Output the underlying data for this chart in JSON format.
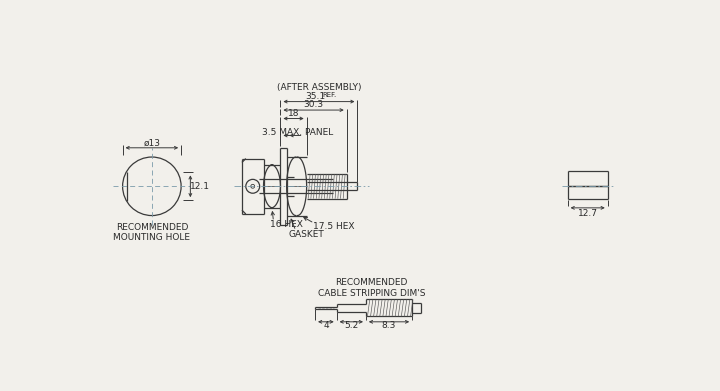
{
  "bg_color": "#f2f0eb",
  "line_color": "#3a3a3a",
  "dash_color": "#7a9aaa",
  "text_color": "#2a2a2a",
  "annotations": {
    "cable_strip": "RECOMMENDED\nCABLE STRIPPING DIM'S",
    "mounting_hole": "RECOMMENDED\nMOUNTING HOLE",
    "gasket": "GASKET",
    "hex16": "16 HEX",
    "hex175": "17.5 HEX",
    "max_panel": "3.5 MAX. PANEL",
    "after_assembly": "(AFTER ASSEMBLY)"
  },
  "dims": {
    "d4": "4",
    "d52": "5.2",
    "d83": "8.3",
    "d13": "ø13",
    "d121": "12.1",
    "d18": "18",
    "d303": "30.3",
    "d351": "35.1",
    "d127": "12.7",
    "ref": "REF."
  }
}
